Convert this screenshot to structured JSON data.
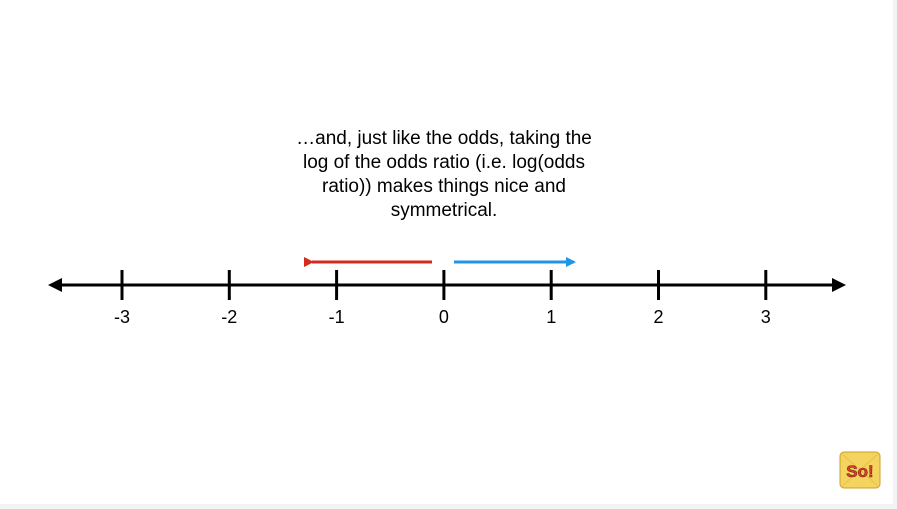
{
  "caption": {
    "lines": [
      "…and, just like the odds, taking the",
      "log of the odds ratio (i.e. log(odds",
      "ratio)) makes things nice and",
      "symmetrical."
    ]
  },
  "number_line": {
    "ticks": [
      "-3",
      "-2",
      "-1",
      "0",
      "1",
      "2",
      "3"
    ],
    "left_arrow_color": "#d42b1f",
    "right_arrow_color": "#1f95e6"
  },
  "logo": {
    "text": "So!",
    "icon": "statquest-logo-icon"
  }
}
